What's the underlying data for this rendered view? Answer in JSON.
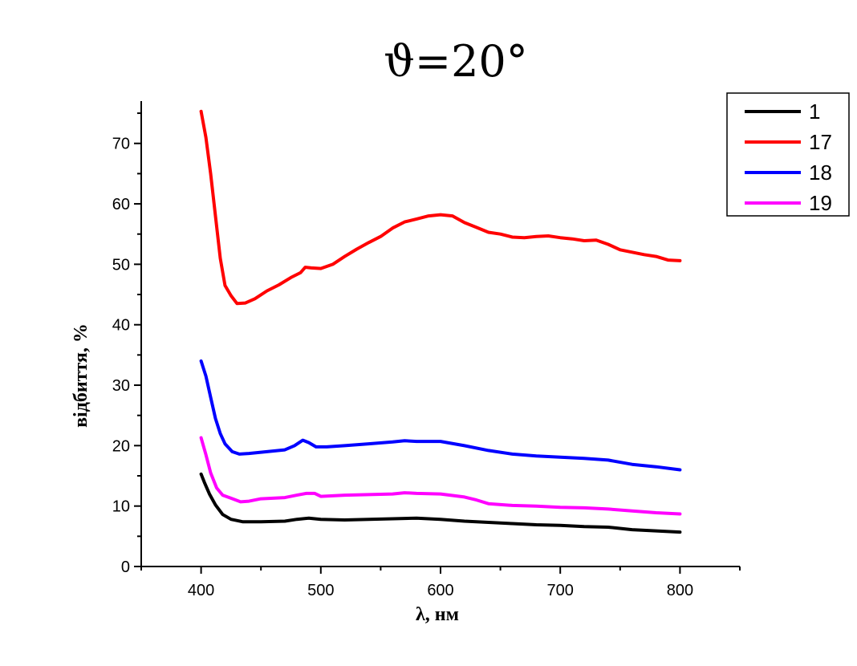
{
  "chart_data": {
    "type": "line",
    "title": "ϑ=20°",
    "xlabel": "λ, нм",
    "ylabel": "відбиття, %",
    "xlim": [
      350,
      850
    ],
    "ylim": [
      0,
      77
    ],
    "x_ticks": [
      400,
      500,
      600,
      700,
      800
    ],
    "y_ticks": [
      0,
      10,
      20,
      30,
      40,
      50,
      60,
      70
    ],
    "grid": false,
    "legend_position": "top-right",
    "series": [
      {
        "name": "1",
        "color": "#000000",
        "points": [
          [
            400,
            15.3
          ],
          [
            403,
            13.8
          ],
          [
            407,
            12.0
          ],
          [
            412,
            10.2
          ],
          [
            418,
            8.6
          ],
          [
            425,
            7.8
          ],
          [
            435,
            7.4
          ],
          [
            450,
            7.4
          ],
          [
            470,
            7.5
          ],
          [
            480,
            7.8
          ],
          [
            490,
            8.0
          ],
          [
            500,
            7.8
          ],
          [
            520,
            7.7
          ],
          [
            540,
            7.8
          ],
          [
            560,
            7.9
          ],
          [
            580,
            8.0
          ],
          [
            600,
            7.8
          ],
          [
            620,
            7.5
          ],
          [
            640,
            7.3
          ],
          [
            660,
            7.1
          ],
          [
            680,
            6.9
          ],
          [
            700,
            6.8
          ],
          [
            720,
            6.6
          ],
          [
            740,
            6.5
          ],
          [
            760,
            6.1
          ],
          [
            780,
            5.9
          ],
          [
            800,
            5.7
          ]
        ]
      },
      {
        "name": "17",
        "color": "#ff0000",
        "points": [
          [
            400,
            75.3
          ],
          [
            404,
            71.0
          ],
          [
            408,
            65.0
          ],
          [
            412,
            58.0
          ],
          [
            416,
            51.0
          ],
          [
            420,
            46.5
          ],
          [
            425,
            44.8
          ],
          [
            430,
            43.5
          ],
          [
            437,
            43.6
          ],
          [
            445,
            44.3
          ],
          [
            455,
            45.6
          ],
          [
            465,
            46.6
          ],
          [
            475,
            47.8
          ],
          [
            483,
            48.6
          ],
          [
            487,
            49.5
          ],
          [
            492,
            49.4
          ],
          [
            500,
            49.3
          ],
          [
            510,
            50.0
          ],
          [
            520,
            51.3
          ],
          [
            530,
            52.5
          ],
          [
            540,
            53.6
          ],
          [
            550,
            54.6
          ],
          [
            560,
            56.0
          ],
          [
            570,
            57.0
          ],
          [
            580,
            57.5
          ],
          [
            590,
            58.0
          ],
          [
            600,
            58.2
          ],
          [
            610,
            58.0
          ],
          [
            620,
            56.9
          ],
          [
            630,
            56.1
          ],
          [
            640,
            55.3
          ],
          [
            650,
            55.0
          ],
          [
            660,
            54.5
          ],
          [
            670,
            54.4
          ],
          [
            680,
            54.6
          ],
          [
            690,
            54.7
          ],
          [
            700,
            54.4
          ],
          [
            710,
            54.2
          ],
          [
            720,
            53.9
          ],
          [
            730,
            54.0
          ],
          [
            740,
            53.3
          ],
          [
            750,
            52.4
          ],
          [
            760,
            52.0
          ],
          [
            770,
            51.6
          ],
          [
            780,
            51.3
          ],
          [
            790,
            50.7
          ],
          [
            800,
            50.6
          ]
        ]
      },
      {
        "name": "18",
        "color": "#0000ff",
        "points": [
          [
            400,
            34.0
          ],
          [
            404,
            31.5
          ],
          [
            408,
            28.0
          ],
          [
            412,
            24.5
          ],
          [
            416,
            22.0
          ],
          [
            420,
            20.3
          ],
          [
            426,
            19.0
          ],
          [
            432,
            18.6
          ],
          [
            440,
            18.7
          ],
          [
            450,
            18.9
          ],
          [
            460,
            19.1
          ],
          [
            470,
            19.3
          ],
          [
            478,
            20.0
          ],
          [
            485,
            20.9
          ],
          [
            490,
            20.5
          ],
          [
            496,
            19.8
          ],
          [
            505,
            19.8
          ],
          [
            520,
            20.0
          ],
          [
            540,
            20.3
          ],
          [
            560,
            20.6
          ],
          [
            570,
            20.8
          ],
          [
            580,
            20.7
          ],
          [
            600,
            20.7
          ],
          [
            620,
            20.0
          ],
          [
            640,
            19.2
          ],
          [
            660,
            18.6
          ],
          [
            680,
            18.3
          ],
          [
            700,
            18.1
          ],
          [
            720,
            17.9
          ],
          [
            740,
            17.6
          ],
          [
            760,
            16.9
          ],
          [
            780,
            16.5
          ],
          [
            800,
            16.0
          ]
        ]
      },
      {
        "name": "19",
        "color": "#ff00ff",
        "points": [
          [
            400,
            21.3
          ],
          [
            404,
            18.5
          ],
          [
            408,
            15.5
          ],
          [
            413,
            13.0
          ],
          [
            418,
            11.8
          ],
          [
            425,
            11.3
          ],
          [
            433,
            10.7
          ],
          [
            440,
            10.8
          ],
          [
            450,
            11.2
          ],
          [
            460,
            11.3
          ],
          [
            470,
            11.4
          ],
          [
            480,
            11.8
          ],
          [
            488,
            12.1
          ],
          [
            495,
            12.1
          ],
          [
            500,
            11.6
          ],
          [
            520,
            11.8
          ],
          [
            540,
            11.9
          ],
          [
            560,
            12.0
          ],
          [
            570,
            12.2
          ],
          [
            580,
            12.1
          ],
          [
            600,
            12.0
          ],
          [
            620,
            11.5
          ],
          [
            630,
            11.0
          ],
          [
            640,
            10.4
          ],
          [
            660,
            10.1
          ],
          [
            680,
            10.0
          ],
          [
            700,
            9.8
          ],
          [
            720,
            9.7
          ],
          [
            740,
            9.5
          ],
          [
            760,
            9.2
          ],
          [
            780,
            8.9
          ],
          [
            800,
            8.7
          ]
        ]
      }
    ]
  }
}
